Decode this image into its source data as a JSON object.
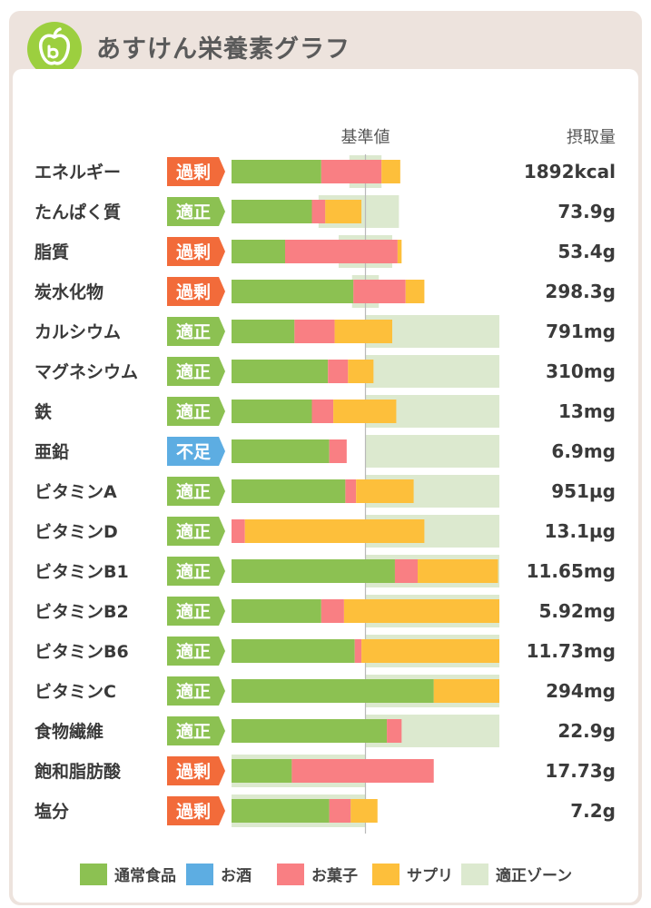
{
  "header": {
    "title": "あすけん栄養素グラフ"
  },
  "colors": {
    "normal_food": "#8cc152",
    "alcohol": "#5dade2",
    "snacks": "#f97f83",
    "supplement": "#fdbf3b",
    "zone": "#dce9cf",
    "status_excess": "#f26b3a",
    "status_ok": "#8cc152",
    "status_lack": "#5dade2"
  },
  "chart_data": {
    "type": "bar",
    "orientation": "horizontal-stacked",
    "reference_label": "基準値",
    "intake_header": "摂取量",
    "units_note": "bar length as percent of reference value (100 = 基準値)",
    "rows": [
      {
        "label": "エネルギー",
        "status": "過剰",
        "status_type": "excess",
        "intake": "1892kcal",
        "normal": 67,
        "snacks": 45,
        "supplement": 14,
        "zone": [
          88,
          112
        ]
      },
      {
        "label": "たんぱく質",
        "status": "適正",
        "status_type": "ok",
        "intake": "73.9g",
        "normal": 60,
        "snacks": 10,
        "supplement": 27,
        "zone": [
          65,
          125
        ]
      },
      {
        "label": "脂質",
        "status": "過剰",
        "status_type": "excess",
        "intake": "53.4g",
        "normal": 40,
        "snacks": 84,
        "supplement": 3,
        "zone": [
          80,
          120
        ]
      },
      {
        "label": "炭水化物",
        "status": "過剰",
        "status_type": "excess",
        "intake": "298.3g",
        "normal": 91,
        "snacks": 39,
        "supplement": 14,
        "zone": [
          90,
          110
        ]
      },
      {
        "label": "カルシウム",
        "status": "適正",
        "status_type": "ok",
        "intake": "791mg",
        "normal": 47,
        "snacks": 30,
        "supplement": 43,
        "zone": [
          100,
          200
        ]
      },
      {
        "label": "マグネシウム",
        "status": "適正",
        "status_type": "ok",
        "intake": "310mg",
        "normal": 72,
        "snacks": 15,
        "supplement": 19,
        "zone": [
          100,
          200
        ]
      },
      {
        "label": "鉄",
        "status": "適正",
        "status_type": "ok",
        "intake": "13mg",
        "normal": 60,
        "snacks": 16,
        "supplement": 47,
        "zone": [
          100,
          200
        ]
      },
      {
        "label": "亜鉛",
        "status": "不足",
        "status_type": "lack",
        "intake": "6.9mg",
        "normal": 73,
        "snacks": 13,
        "supplement": 0,
        "zone": [
          100,
          200
        ]
      },
      {
        "label": "ビタミンA",
        "status": "適正",
        "status_type": "ok",
        "intake": "951µg",
        "normal": 85,
        "snacks": 8,
        "supplement": 43,
        "zone": [
          100,
          200
        ]
      },
      {
        "label": "ビタミンD",
        "status": "適正",
        "status_type": "ok",
        "intake": "13.1µg",
        "normal": 0,
        "snacks": 10,
        "supplement": 134,
        "zone": [
          100,
          200
        ]
      },
      {
        "label": "ビタミンB1",
        "status": "適正",
        "status_type": "ok",
        "intake": "11.65mg",
        "normal": 122,
        "snacks": 17,
        "supplement": 60,
        "zone": [
          100,
          200
        ]
      },
      {
        "label": "ビタミンB2",
        "status": "適正",
        "status_type": "ok",
        "intake": "5.92mg",
        "normal": 67,
        "snacks": 17,
        "supplement": 116,
        "zone": [
          100,
          200
        ]
      },
      {
        "label": "ビタミンB6",
        "status": "適正",
        "status_type": "ok",
        "intake": "11.73mg",
        "normal": 92,
        "snacks": 5,
        "supplement": 103,
        "zone": [
          100,
          200
        ]
      },
      {
        "label": "ビタミンC",
        "status": "適正",
        "status_type": "ok",
        "intake": "294mg",
        "normal": 151,
        "snacks": 0,
        "supplement": 49,
        "zone": [
          100,
          200
        ]
      },
      {
        "label": "食物繊維",
        "status": "適正",
        "status_type": "ok",
        "intake": "22.9g",
        "normal": 116,
        "snacks": 11,
        "supplement": 0,
        "zone": [
          100,
          200
        ]
      },
      {
        "label": "飽和脂肪酸",
        "status": "過剰",
        "status_type": "excess",
        "intake": "17.73g",
        "normal": 45,
        "snacks": 106,
        "supplement": 0,
        "zone": [
          0,
          100
        ]
      },
      {
        "label": "塩分",
        "status": "過剰",
        "status_type": "excess",
        "intake": "7.2g",
        "normal": 73,
        "snacks": 16,
        "supplement": 20,
        "zone": [
          0,
          100
        ]
      }
    ],
    "legend": [
      {
        "key": "normal_food",
        "label": "通常食品"
      },
      {
        "key": "alcohol",
        "label": "お酒"
      },
      {
        "key": "snacks",
        "label": "お菓子"
      },
      {
        "key": "supplement",
        "label": "サプリ"
      },
      {
        "key": "zone",
        "label": "適正ゾーン"
      }
    ]
  }
}
